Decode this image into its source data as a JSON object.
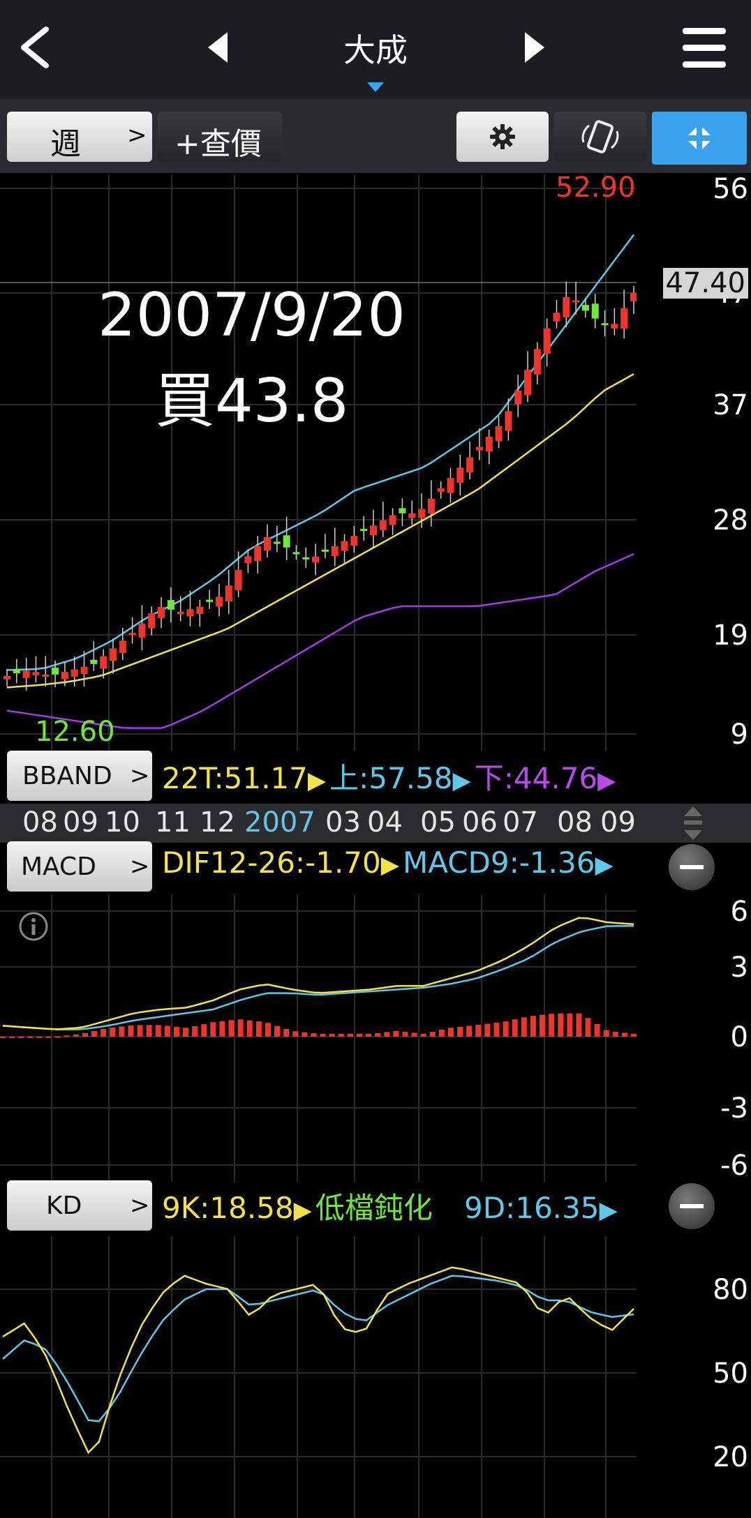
{
  "header": {
    "title": "大成"
  },
  "toolbar": {
    "period_label": "週",
    "query_label": "+查價"
  },
  "price_chart": {
    "high_label": "52.90",
    "low_label": "12.60",
    "current_price": "47.40",
    "annotation_date": "2007/9/20",
    "annotation_text": "買43.8",
    "axis_ticks": [
      "56",
      "47",
      "37",
      "28",
      "19",
      "9"
    ]
  },
  "bband": {
    "label": "BBAND",
    "mid": "22T:51.17",
    "upper": "上:57.58",
    "lower": "下:44.76"
  },
  "time_axis": {
    "months": [
      {
        "text": "08",
        "highlight": false
      },
      {
        "text": "09",
        "highlight": false
      },
      {
        "text": "10",
        "highlight": false
      },
      {
        "text": "11",
        "highlight": false
      },
      {
        "text": "12",
        "highlight": false
      },
      {
        "text": "2007",
        "highlight": true
      },
      {
        "text": "03",
        "highlight": false
      },
      {
        "text": "04",
        "highlight": false
      },
      {
        "text": "05",
        "highlight": false
      },
      {
        "text": "06",
        "highlight": false
      },
      {
        "text": "07",
        "highlight": false
      },
      {
        "text": "08",
        "highlight": false
      },
      {
        "text": "09",
        "highlight": false
      }
    ]
  },
  "macd": {
    "label": "MACD",
    "dif": "DIF12-26:-1.70",
    "signal": "MACD9:-1.36",
    "axis_ticks": [
      "6",
      "3",
      "0",
      "-3",
      "-6"
    ]
  },
  "kd": {
    "label": "KD",
    "k": "9K:18.58",
    "status": "低檔鈍化",
    "d": "9D:16.35",
    "axis_ticks": [
      "80",
      "50",
      "20"
    ]
  },
  "colors": {
    "up": "#f0342c",
    "down": "#6fe83a",
    "ma_fast": "#5ec8ea",
    "ma_mid": "#f2e34a",
    "ma_slow": "#a43be6",
    "accent": "#3aa2ee"
  }
}
